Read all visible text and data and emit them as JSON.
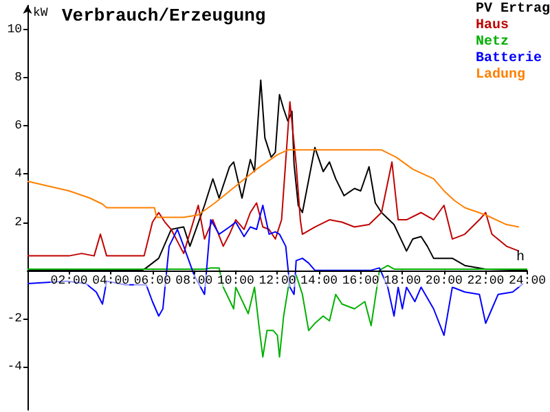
{
  "chart_data": {
    "type": "line",
    "title": "Verbrauch/Erzeugung",
    "ylabel": "kW",
    "xlabel": "h",
    "xlim": [
      0,
      24
    ],
    "ylim": [
      -5.8,
      11
    ],
    "yticks": [
      -4,
      -2,
      2,
      4,
      6,
      8,
      10
    ],
    "xticks": [
      {
        "value": 2,
        "label": "02:00"
      },
      {
        "value": 4,
        "label": "04:00"
      },
      {
        "value": 6,
        "label": "06:00"
      },
      {
        "value": 8,
        "label": "08:00"
      },
      {
        "value": 10,
        "label": "10:00"
      },
      {
        "value": 12,
        "label": "12:00"
      },
      {
        "value": 14,
        "label": "14:00"
      },
      {
        "value": 16,
        "label": "16:00"
      },
      {
        "value": 18,
        "label": "18:00"
      },
      {
        "value": 20,
        "label": "20:00"
      },
      {
        "value": 22,
        "label": "22:00"
      },
      {
        "value": 24,
        "label": "24:00"
      }
    ],
    "grid": false,
    "legend": "top right",
    "marker": "none",
    "line_style": "solid",
    "series": [
      {
        "name": "PV Ertrag",
        "color": "#000000",
        "x": [
          0,
          5.5,
          5.7,
          6.3,
          6.9,
          7.5,
          7.8,
          8.5,
          8.9,
          9.2,
          9.7,
          9.9,
          10.3,
          10.7,
          10.9,
          11.2,
          11.4,
          11.7,
          11.9,
          12.1,
          12.3,
          12.5,
          12.7,
          12.8,
          13,
          13.2,
          13.8,
          14.2,
          14.5,
          14.8,
          15.2,
          15.7,
          16,
          16.4,
          16.7,
          17,
          17.6,
          18.2,
          18.5,
          18.9,
          19.2,
          19.5,
          20.4,
          21,
          22,
          24
        ],
        "values": [
          0,
          0,
          0.1,
          0.5,
          1.7,
          1.8,
          1.0,
          2.7,
          3.8,
          3.0,
          4.3,
          4.5,
          3.0,
          4.6,
          4.1,
          7.9,
          5.5,
          4.7,
          4.9,
          7.3,
          6.7,
          6.2,
          6.6,
          4.4,
          2.7,
          2.4,
          5.1,
          4.1,
          4.5,
          3.8,
          3.1,
          3.4,
          3.3,
          4.3,
          2.8,
          2.4,
          1.9,
          0.8,
          1.3,
          1.4,
          1.0,
          0.5,
          0.5,
          0.2,
          0.05,
          0
        ]
      },
      {
        "name": "Haus",
        "color": "#c00000",
        "x": [
          0,
          1,
          2,
          2.6,
          3.2,
          3.5,
          3.8,
          5.6,
          6,
          6.3,
          6.6,
          6.9,
          7.5,
          8.2,
          8.5,
          8.9,
          9.4,
          9.7,
          10,
          10.4,
          10.7,
          11,
          11.3,
          11.6,
          11.9,
          12.2,
          12.6,
          12.9,
          13.1,
          13.2,
          13.8,
          14.5,
          15.1,
          15.7,
          16.4,
          17,
          17.5,
          17.8,
          18.2,
          18.9,
          19.5,
          20,
          20.4,
          21,
          21.7,
          22,
          22.3,
          23,
          23.6
        ],
        "values": [
          0.6,
          0.6,
          0.6,
          0.7,
          0.6,
          1.5,
          0.6,
          0.6,
          2.0,
          2.4,
          2.0,
          1.7,
          0.7,
          2.7,
          1.3,
          2.1,
          1.0,
          1.5,
          2.1,
          1.7,
          2.4,
          2.8,
          1.8,
          1.7,
          1.3,
          2.1,
          7.0,
          4.4,
          2.1,
          1.5,
          1.8,
          2.1,
          2.0,
          1.8,
          1.9,
          2.4,
          4.5,
          2.1,
          2.1,
          2.4,
          2.1,
          2.7,
          1.3,
          1.5,
          2.1,
          2.4,
          1.5,
          1.0,
          0.8
        ]
      },
      {
        "name": "Netz",
        "color": "#00b000",
        "x": [
          0,
          8.5,
          8.8,
          9.2,
          9.4,
          9.9,
          10,
          10.6,
          10.9,
          11.1,
          11.3,
          11.5,
          11.8,
          12,
          12.1,
          12.3,
          12.6,
          12.9,
          13.2,
          13.5,
          13.8,
          14.2,
          14.5,
          14.8,
          15.1,
          15.7,
          16.2,
          16.5,
          16.9,
          17.3,
          17.6,
          24
        ],
        "values": [
          0.05,
          0.05,
          0.1,
          0.1,
          -0.7,
          -1.6,
          -0.7,
          -1.8,
          -0.7,
          -2.2,
          -3.6,
          -2.5,
          -2.5,
          -2.7,
          -3.6,
          -1.9,
          -0.3,
          -0.2,
          -1.0,
          -2.5,
          -2.2,
          -1.9,
          -2.1,
          -1.0,
          -1.4,
          -1.6,
          -1.3,
          -2.3,
          0,
          0.2,
          0.05,
          0.05
        ]
      },
      {
        "name": "Batterie",
        "color": "#0000ff",
        "x": [
          0,
          1.9,
          2.8,
          3.3,
          3.6,
          3.8,
          4.7,
          5.7,
          6,
          6.3,
          6.5,
          6.8,
          7.2,
          7.5,
          8,
          8.5,
          8.8,
          9.2,
          9.7,
          10,
          10.4,
          10.7,
          11,
          11.3,
          11.6,
          11.9,
          12.1,
          12.4,
          12.6,
          12.8,
          12.9,
          13.2,
          13.5,
          13.8,
          16.5,
          16.9,
          17.3,
          17.6,
          17.8,
          18,
          18.2,
          18.6,
          18.9,
          19.5,
          20,
          20.4,
          21,
          21.7,
          22,
          22.3,
          22.6,
          23.3,
          23.8
        ],
        "values": [
          -0.55,
          -0.45,
          -0.55,
          -0.9,
          -1.4,
          -0.45,
          -0.6,
          -0.6,
          -1.3,
          -1.9,
          -1.6,
          1.0,
          1.7,
          1.0,
          -0.2,
          -1.0,
          2.1,
          1.5,
          1.8,
          2.0,
          1.4,
          1.8,
          1.7,
          2.7,
          1.5,
          1.6,
          1.5,
          1.0,
          -0.7,
          -1.0,
          0.4,
          0.5,
          0.3,
          0,
          0,
          0.1,
          -0.7,
          -1.9,
          -0.7,
          -1.6,
          -0.7,
          -1.3,
          -0.7,
          -1.6,
          -2.7,
          -0.7,
          -0.9,
          -1.0,
          -2.2,
          -1.6,
          -1.0,
          -0.9,
          -0.55
        ]
      },
      {
        "name": "Ladung",
        "color": "#ff8000",
        "x": [
          0,
          1,
          2,
          3,
          3.6,
          3.8,
          5,
          6.1,
          6.2,
          7.5,
          8.2,
          9,
          10,
          11,
          12,
          12.5,
          17,
          17.7,
          18.5,
          19.5,
          20,
          20.5,
          21,
          22,
          23,
          23.6
        ],
        "values": [
          3.7,
          3.5,
          3.3,
          3.0,
          2.75,
          2.6,
          2.6,
          2.6,
          2.2,
          2.2,
          2.3,
          2.8,
          3.5,
          4.2,
          4.8,
          5.0,
          5.0,
          4.7,
          4.2,
          3.8,
          3.3,
          2.9,
          2.6,
          2.3,
          1.9,
          1.8
        ]
      }
    ]
  }
}
